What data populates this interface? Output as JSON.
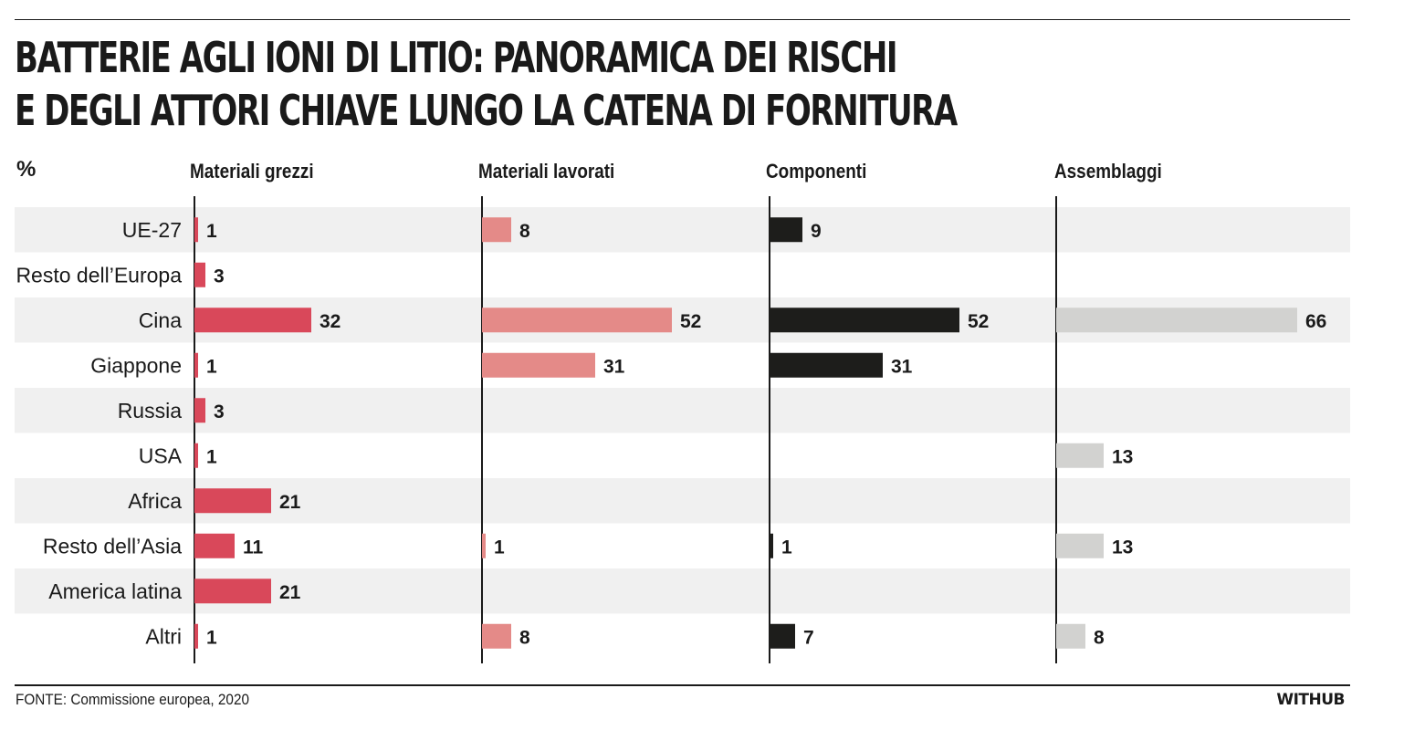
{
  "title_lines": [
    "Batterie agli ioni di litio: panoramica dei rischi",
    "e degli attori chiave lungo la catena di fornitura"
  ],
  "unit_label": "%",
  "source": "FONTE: Commissione europea, 2020",
  "brand": "WITHUB",
  "colors": {
    "materiali_grezzi": "#d9485a",
    "materiali_lavorati": "#e48a88",
    "componenti": "#1d1d1b",
    "assemblaggi": "#d2d2d0",
    "row_stripe": "#f0f0f0",
    "text": "#1a1a1a"
  },
  "chart_data": {
    "type": "bar",
    "orientation": "horizontal",
    "unit": "%",
    "categories": [
      "UE-27",
      "Resto dell’Europa",
      "Cina",
      "Giappone",
      "Russia",
      "USA",
      "Africa",
      "Resto dell’Asia",
      "America latina",
      "Altri"
    ],
    "series": [
      {
        "name": "Materiali grezzi",
        "values": [
          1,
          3,
          32,
          1,
          3,
          1,
          21,
          11,
          21,
          1
        ]
      },
      {
        "name": "Materiali lavorati",
        "values": [
          8,
          null,
          52,
          31,
          null,
          null,
          null,
          1,
          null,
          8
        ]
      },
      {
        "name": "Componenti",
        "values": [
          9,
          null,
          52,
          31,
          null,
          null,
          null,
          1,
          null,
          7
        ]
      },
      {
        "name": "Assemblaggi",
        "values": [
          null,
          null,
          66,
          null,
          null,
          13,
          null,
          13,
          null,
          8
        ]
      }
    ],
    "title": "Batterie agli ioni di litio: panoramica dei rischi e degli attori chiave lungo la catena di fornitura",
    "grid": false,
    "legend": "none"
  }
}
